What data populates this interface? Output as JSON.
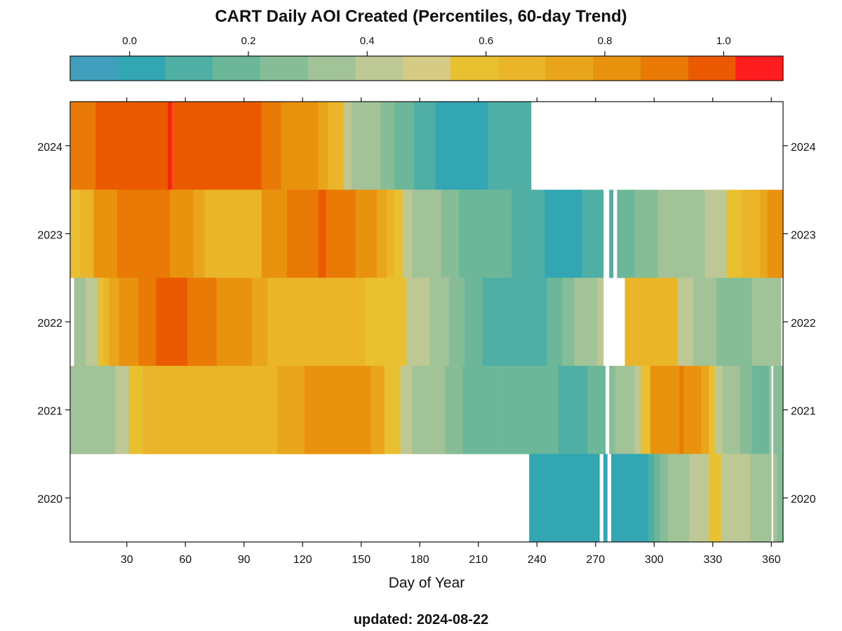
{
  "chart_data": {
    "type": "heatmap",
    "title": "CART Daily AOI Created (Percentiles, 60-day Trend)",
    "xlabel": "Day of Year",
    "ylabel": "",
    "footer": "updated: 2024-08-22",
    "xlim": [
      1,
      366
    ],
    "x_ticks": [
      30,
      60,
      90,
      120,
      150,
      180,
      210,
      240,
      270,
      300,
      330,
      360
    ],
    "x_tick_labels": [
      "30",
      "60",
      "90",
      "120",
      "150",
      "180",
      "210",
      "240",
      "270",
      "300",
      "330",
      "360"
    ],
    "y_categories": [
      "2024",
      "2023",
      "2022",
      "2021",
      "2020"
    ],
    "colorbar": {
      "range": [
        -0.1,
        1.1
      ],
      "ticks": [
        0.0,
        0.2,
        0.4,
        0.6,
        0.8,
        1.0
      ],
      "tick_labels": [
        "0.0",
        "0.2",
        "0.4",
        "0.6",
        "0.8",
        "1.0"
      ],
      "colors": [
        "#3f9fbc",
        "#33a6b4",
        "#4fafa4",
        "#6cb79a",
        "#86bd97",
        "#a2c297",
        "#bec894",
        "#d6cb85",
        "#e9c130",
        "#ebb52a",
        "#e9a51b",
        "#e9920e",
        "#e87a05",
        "#ec5a00",
        "#ff1d20"
      ]
    },
    "rows": [
      {
        "year": "2024",
        "segments": [
          {
            "start": 1,
            "end": 14,
            "value": 0.88
          },
          {
            "start": 14,
            "end": 51,
            "value": 0.97
          },
          {
            "start": 51,
            "end": 53,
            "value": 1.05
          },
          {
            "start": 53,
            "end": 99,
            "value": 0.97
          },
          {
            "start": 99,
            "end": 109,
            "value": 0.88
          },
          {
            "start": 109,
            "end": 122,
            "value": 0.83
          },
          {
            "start": 122,
            "end": 128,
            "value": 0.8
          },
          {
            "start": 128,
            "end": 133,
            "value": 0.75
          },
          {
            "start": 133,
            "end": 137,
            "value": 0.7
          },
          {
            "start": 137,
            "end": 141,
            "value": 0.65
          },
          {
            "start": 141,
            "end": 145,
            "value": 0.45
          },
          {
            "start": 145,
            "end": 152,
            "value": 0.38
          },
          {
            "start": 152,
            "end": 160,
            "value": 0.33
          },
          {
            "start": 160,
            "end": 167,
            "value": 0.28
          },
          {
            "start": 167,
            "end": 177,
            "value": 0.2
          },
          {
            "start": 177,
            "end": 188,
            "value": 0.12
          },
          {
            "start": 188,
            "end": 215,
            "value": 0.03
          },
          {
            "start": 215,
            "end": 237,
            "value": 0.12
          }
        ]
      },
      {
        "year": "2023",
        "segments": [
          {
            "start": 1,
            "end": 6,
            "value": 0.6
          },
          {
            "start": 6,
            "end": 13,
            "value": 0.7
          },
          {
            "start": 13,
            "end": 25,
            "value": 0.83
          },
          {
            "start": 25,
            "end": 52,
            "value": 0.88
          },
          {
            "start": 52,
            "end": 64,
            "value": 0.83
          },
          {
            "start": 64,
            "end": 70,
            "value": 0.75
          },
          {
            "start": 70,
            "end": 81,
            "value": 0.7
          },
          {
            "start": 81,
            "end": 90,
            "value": 0.65
          },
          {
            "start": 90,
            "end": 99,
            "value": 0.7
          },
          {
            "start": 99,
            "end": 112,
            "value": 0.83
          },
          {
            "start": 112,
            "end": 128,
            "value": 0.88
          },
          {
            "start": 128,
            "end": 132,
            "value": 0.97
          },
          {
            "start": 132,
            "end": 147,
            "value": 0.88
          },
          {
            "start": 147,
            "end": 158,
            "value": 0.83
          },
          {
            "start": 158,
            "end": 163,
            "value": 0.75
          },
          {
            "start": 163,
            "end": 167,
            "value": 0.7
          },
          {
            "start": 167,
            "end": 171,
            "value": 0.6
          },
          {
            "start": 171,
            "end": 176,
            "value": 0.45
          },
          {
            "start": 176,
            "end": 183,
            "value": 0.38
          },
          {
            "start": 183,
            "end": 191,
            "value": 0.33
          },
          {
            "start": 191,
            "end": 200,
            "value": 0.28
          },
          {
            "start": 200,
            "end": 227,
            "value": 0.2
          },
          {
            "start": 227,
            "end": 244,
            "value": 0.12
          },
          {
            "start": 244,
            "end": 263,
            "value": 0.03
          },
          {
            "start": 263,
            "end": 274,
            "value": 0.12
          },
          {
            "start": 277,
            "end": 279,
            "value": 0.12
          },
          {
            "start": 281,
            "end": 290,
            "value": 0.2
          },
          {
            "start": 290,
            "end": 302,
            "value": 0.28
          },
          {
            "start": 302,
            "end": 314,
            "value": 0.33
          },
          {
            "start": 314,
            "end": 326,
            "value": 0.38
          },
          {
            "start": 326,
            "end": 337,
            "value": 0.45
          },
          {
            "start": 337,
            "end": 345,
            "value": 0.6
          },
          {
            "start": 345,
            "end": 349,
            "value": 0.65
          },
          {
            "start": 349,
            "end": 354,
            "value": 0.7
          },
          {
            "start": 354,
            "end": 358,
            "value": 0.75
          },
          {
            "start": 358,
            "end": 366,
            "value": 0.83
          }
        ]
      },
      {
        "year": "2022",
        "segments": [
          {
            "start": 3,
            "end": 9,
            "value": 0.38
          },
          {
            "start": 9,
            "end": 15,
            "value": 0.45
          },
          {
            "start": 15,
            "end": 18,
            "value": 0.6
          },
          {
            "start": 18,
            "end": 21,
            "value": 0.7
          },
          {
            "start": 21,
            "end": 26,
            "value": 0.75
          },
          {
            "start": 26,
            "end": 36,
            "value": 0.83
          },
          {
            "start": 36,
            "end": 45,
            "value": 0.88
          },
          {
            "start": 45,
            "end": 61,
            "value": 0.97
          },
          {
            "start": 61,
            "end": 76,
            "value": 0.88
          },
          {
            "start": 76,
            "end": 94,
            "value": 0.83
          },
          {
            "start": 94,
            "end": 102,
            "value": 0.75
          },
          {
            "start": 102,
            "end": 111,
            "value": 0.7
          },
          {
            "start": 111,
            "end": 152,
            "value": 0.65
          },
          {
            "start": 152,
            "end": 173,
            "value": 0.6
          },
          {
            "start": 173,
            "end": 185,
            "value": 0.45
          },
          {
            "start": 185,
            "end": 195,
            "value": 0.38
          },
          {
            "start": 195,
            "end": 203,
            "value": 0.28
          },
          {
            "start": 203,
            "end": 212,
            "value": 0.2
          },
          {
            "start": 212,
            "end": 245,
            "value": 0.12
          },
          {
            "start": 245,
            "end": 253,
            "value": 0.2
          },
          {
            "start": 253,
            "end": 259,
            "value": 0.28
          },
          {
            "start": 259,
            "end": 264,
            "value": 0.33
          },
          {
            "start": 264,
            "end": 271,
            "value": 0.38
          },
          {
            "start": 271,
            "end": 274,
            "value": 0.45
          },
          {
            "start": 285,
            "end": 312,
            "value": 0.65
          },
          {
            "start": 312,
            "end": 320,
            "value": 0.45
          },
          {
            "start": 320,
            "end": 326,
            "value": 0.38
          },
          {
            "start": 326,
            "end": 332,
            "value": 0.33
          },
          {
            "start": 332,
            "end": 350,
            "value": 0.28
          },
          {
            "start": 350,
            "end": 361,
            "value": 0.33
          },
          {
            "start": 361,
            "end": 365,
            "value": 0.38
          }
        ]
      },
      {
        "year": "2021",
        "segments": [
          {
            "start": 1,
            "end": 4,
            "value": 0.33
          },
          {
            "start": 4,
            "end": 16,
            "value": 0.3
          },
          {
            "start": 16,
            "end": 24,
            "value": 0.38
          },
          {
            "start": 24,
            "end": 31,
            "value": 0.45
          },
          {
            "start": 31,
            "end": 38,
            "value": 0.6
          },
          {
            "start": 38,
            "end": 42,
            "value": 0.65
          },
          {
            "start": 42,
            "end": 71,
            "value": 0.7
          },
          {
            "start": 71,
            "end": 107,
            "value": 0.65
          },
          {
            "start": 107,
            "end": 121,
            "value": 0.75
          },
          {
            "start": 121,
            "end": 155,
            "value": 0.8
          },
          {
            "start": 155,
            "end": 162,
            "value": 0.72
          },
          {
            "start": 162,
            "end": 170,
            "value": 0.6
          },
          {
            "start": 170,
            "end": 176,
            "value": 0.45
          },
          {
            "start": 176,
            "end": 184,
            "value": 0.38
          },
          {
            "start": 184,
            "end": 193,
            "value": 0.33
          },
          {
            "start": 193,
            "end": 202,
            "value": 0.28
          },
          {
            "start": 202,
            "end": 220,
            "value": 0.2
          },
          {
            "start": 220,
            "end": 251,
            "value": 0.2
          },
          {
            "start": 251,
            "end": 266,
            "value": 0.12
          },
          {
            "start": 266,
            "end": 275,
            "value": 0.2
          },
          {
            "start": 277,
            "end": 280,
            "value": 0.28
          },
          {
            "start": 280,
            "end": 285,
            "value": 0.33
          },
          {
            "start": 285,
            "end": 290,
            "value": 0.38
          },
          {
            "start": 290,
            "end": 293,
            "value": 0.45
          },
          {
            "start": 293,
            "end": 298,
            "value": 0.6
          },
          {
            "start": 298,
            "end": 313,
            "value": 0.83
          },
          {
            "start": 313,
            "end": 315,
            "value": 0.88
          },
          {
            "start": 315,
            "end": 324,
            "value": 0.8
          },
          {
            "start": 324,
            "end": 328,
            "value": 0.72
          },
          {
            "start": 328,
            "end": 331,
            "value": 0.6
          },
          {
            "start": 331,
            "end": 335,
            "value": 0.45
          },
          {
            "start": 335,
            "end": 339,
            "value": 0.38
          },
          {
            "start": 339,
            "end": 344,
            "value": 0.33
          },
          {
            "start": 344,
            "end": 350,
            "value": 0.28
          },
          {
            "start": 350,
            "end": 359,
            "value": 0.2
          },
          {
            "start": 359,
            "end": 360,
            "value": 0.3
          },
          {
            "start": 361,
            "end": 366,
            "value": 0.28
          }
        ]
      },
      {
        "year": "2020",
        "segments": [
          {
            "start": 236,
            "end": 256,
            "value": 0.03
          },
          {
            "start": 256,
            "end": 258,
            "value": -0.01
          },
          {
            "start": 258,
            "end": 272,
            "value": 0.03
          },
          {
            "start": 274,
            "end": 276,
            "value": 0.03
          },
          {
            "start": 278,
            "end": 297,
            "value": 0.03
          },
          {
            "start": 297,
            "end": 300,
            "value": 0.12
          },
          {
            "start": 300,
            "end": 303,
            "value": 0.2
          },
          {
            "start": 303,
            "end": 307,
            "value": 0.28
          },
          {
            "start": 307,
            "end": 312,
            "value": 0.33
          },
          {
            "start": 312,
            "end": 318,
            "value": 0.38
          },
          {
            "start": 318,
            "end": 328,
            "value": 0.45
          },
          {
            "start": 328,
            "end": 334,
            "value": 0.6
          },
          {
            "start": 334,
            "end": 349,
            "value": 0.45
          },
          {
            "start": 349,
            "end": 360,
            "value": 0.38
          },
          {
            "start": 361,
            "end": 363,
            "value": 0.33
          },
          {
            "start": 363,
            "end": 366,
            "value": 0.28
          }
        ]
      }
    ]
  }
}
